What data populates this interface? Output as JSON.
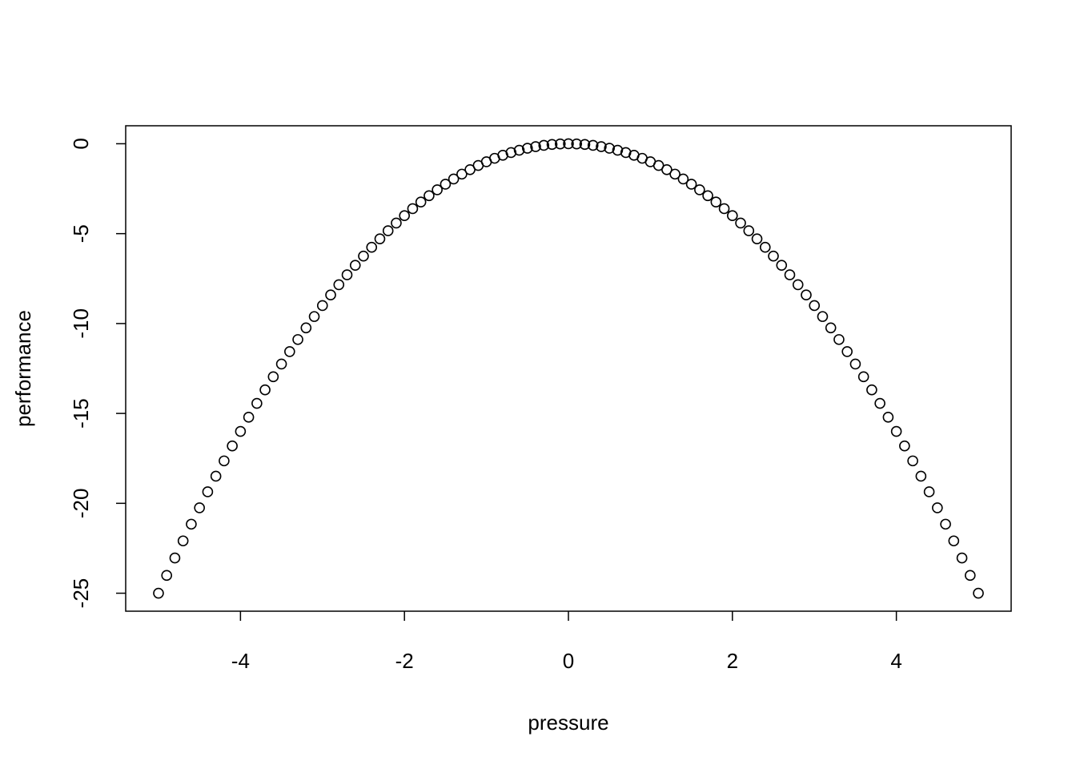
{
  "chart_data": {
    "type": "scatter",
    "x_label": "pressure",
    "y_label": "performance",
    "x": [
      -5,
      -4.9,
      -4.8,
      -4.7,
      -4.6,
      -4.5,
      -4.4,
      -4.3,
      -4.2,
      -4.1,
      -4,
      -3.9,
      -3.8,
      -3.7,
      -3.6,
      -3.5,
      -3.4,
      -3.3,
      -3.2,
      -3.1,
      -3,
      -2.9,
      -2.8,
      -2.7,
      -2.6,
      -2.5,
      -2.4,
      -2.3,
      -2.2,
      -2.1,
      -2,
      -1.9,
      -1.8,
      -1.7,
      -1.6,
      -1.5,
      -1.4,
      -1.3,
      -1.2,
      -1.1,
      -1,
      -0.9,
      -0.8,
      -0.7,
      -0.6,
      -0.5,
      -0.4,
      -0.3,
      -0.2,
      -0.1,
      0,
      0.1,
      0.2,
      0.3,
      0.4,
      0.5,
      0.6,
      0.7,
      0.8,
      0.9,
      1,
      1.1,
      1.2,
      1.3,
      1.4,
      1.5,
      1.6,
      1.7,
      1.8,
      1.9,
      2,
      2.1,
      2.2,
      2.3,
      2.4,
      2.5,
      2.6,
      2.7,
      2.8,
      2.9,
      3,
      3.1,
      3.2,
      3.3,
      3.4,
      3.5,
      3.6,
      3.7,
      3.8,
      3.9,
      4,
      4.1,
      4.2,
      4.3,
      4.4,
      4.5,
      4.6,
      4.7,
      4.8,
      4.9,
      5
    ],
    "values": [
      -25,
      -24.01,
      -23.04,
      -22.09,
      -21.16,
      -20.25,
      -19.36,
      -18.49,
      -17.64,
      -16.81,
      -16,
      -15.21,
      -14.44,
      -13.69,
      -12.96,
      -12.25,
      -11.56,
      -10.89,
      -10.24,
      -9.61,
      -9,
      -8.41,
      -7.84,
      -7.29,
      -6.76,
      -6.25,
      -5.76,
      -5.29,
      -4.84,
      -4.41,
      -4,
      -3.61,
      -3.24,
      -2.89,
      -2.56,
      -2.25,
      -1.96,
      -1.69,
      -1.44,
      -1.21,
      -1,
      -0.81,
      -0.64,
      -0.49,
      -0.36,
      -0.25,
      -0.16,
      -0.09,
      -0.04,
      -0.01,
      0,
      -0.01,
      -0.04,
      -0.09,
      -0.16,
      -0.25,
      -0.36,
      -0.49,
      -0.64,
      -0.81,
      -1,
      -1.21,
      -1.44,
      -1.69,
      -1.96,
      -2.25,
      -2.56,
      -2.89,
      -3.24,
      -3.61,
      -4,
      -4.41,
      -4.84,
      -5.29,
      -5.76,
      -6.25,
      -6.76,
      -7.29,
      -7.84,
      -8.41,
      -9,
      -9.61,
      -10.24,
      -10.89,
      -11.56,
      -12.25,
      -12.96,
      -13.69,
      -14.44,
      -15.21,
      -16,
      -16.81,
      -17.64,
      -18.49,
      -19.36,
      -20.25,
      -21.16,
      -22.09,
      -23.04,
      -24.01,
      -25
    ],
    "color": "#000000",
    "xlim": [
      -5.4,
      5.4
    ],
    "xticks": [
      -4,
      -2,
      0,
      2,
      4
    ],
    "ylim": [
      -26,
      1
    ],
    "yticks": [
      -25,
      -20,
      -15,
      -10,
      -5,
      0
    ]
  }
}
